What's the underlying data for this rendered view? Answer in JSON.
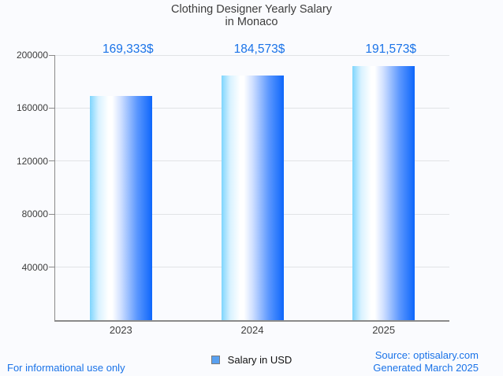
{
  "chart_data": {
    "type": "bar",
    "title": "Clothing Designer Yearly Salary in Monaco",
    "title_lines": [
      "Clothing Designer Yearly Salary",
      "in Monaco"
    ],
    "categories": [
      "2023",
      "2024",
      "2025"
    ],
    "series": [
      {
        "name": "Salary in USD",
        "values": [
          169333,
          184573,
          191573
        ],
        "value_labels": [
          "169,333$",
          "184,573$",
          "191,573$"
        ]
      }
    ],
    "xlabel": "",
    "ylabel": "",
    "ylim": [
      0,
      200000
    ],
    "yticks": [
      40000,
      80000,
      120000,
      160000,
      200000
    ],
    "ytick_labels": [
      "40000",
      "80000",
      "120000",
      "160000",
      "200000"
    ],
    "grid": "horizontal",
    "legend_position": "bottom-center"
  },
  "legend": {
    "label": "Salary in USD",
    "swatch_icon": "blue-square-icon",
    "swatch_color": "#58a0f0"
  },
  "footer": {
    "disclaimer": "For informational use only",
    "source": "Source: optisalary.com",
    "generated": "Generated March 2025"
  },
  "colors": {
    "background": "#fafbfe",
    "accent_text": "#1a73e8",
    "title_text": "#3d3d3d",
    "axis_line": "#8a8a8a",
    "gridline": "#e1e3e6",
    "bar_gradient_left": "#7ed5fd",
    "bar_gradient_mid": "#ffffff",
    "bar_gradient_right": "#0d66fb"
  }
}
